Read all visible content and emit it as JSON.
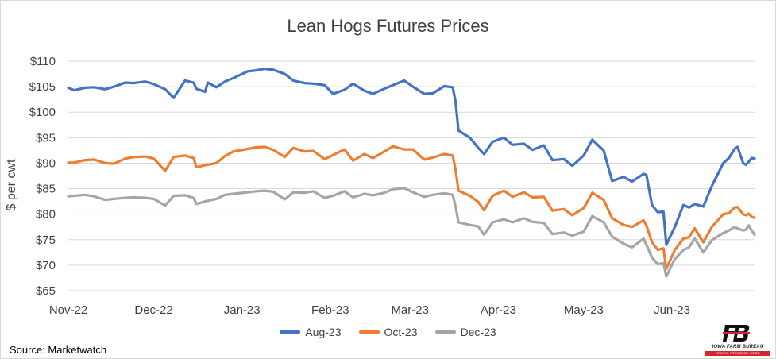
{
  "chart_data": {
    "type": "line",
    "title": "Lean Hogs Futures Prices",
    "ylabel": "$ per cwt",
    "xlabel": "",
    "ylim": [
      65,
      110
    ],
    "yticks": [
      65,
      70,
      75,
      80,
      85,
      90,
      95,
      100,
      105,
      110
    ],
    "ytick_labels": [
      "$65",
      "$70",
      "$75",
      "$80",
      "$85",
      "$90",
      "$95",
      "$100",
      "$105",
      "$110"
    ],
    "x_start": "2022-11-01",
    "x_end": "2023-06-30",
    "x_ticks": [
      {
        "label": "Nov-22",
        "date": "2022-11-01"
      },
      {
        "label": "Dec-22",
        "date": "2022-12-01"
      },
      {
        "label": "Jan-23",
        "date": "2023-01-01"
      },
      {
        "label": "Feb-23",
        "date": "2023-02-01"
      },
      {
        "label": "Mar-23",
        "date": "2023-03-01"
      },
      {
        "label": "Apr-23",
        "date": "2023-04-01"
      },
      {
        "label": "May-23",
        "date": "2023-05-01"
      },
      {
        "label": "Jun-23",
        "date": "2023-06-01"
      }
    ],
    "grid": true,
    "legend_position": "bottom",
    "series": [
      {
        "name": "Aug-23",
        "color": "#4472c4",
        "points": [
          [
            "2022-11-01",
            104.8
          ],
          [
            "2022-11-03",
            104.3
          ],
          [
            "2022-11-07",
            104.8
          ],
          [
            "2022-11-10",
            104.9
          ],
          [
            "2022-11-14",
            104.5
          ],
          [
            "2022-11-17",
            105.0
          ],
          [
            "2022-11-21",
            105.8
          ],
          [
            "2022-11-24",
            105.7
          ],
          [
            "2022-11-28",
            106.0
          ],
          [
            "2022-12-01",
            105.5
          ],
          [
            "2022-12-05",
            104.5
          ],
          [
            "2022-12-08",
            102.8
          ],
          [
            "2022-12-12",
            106.2
          ],
          [
            "2022-12-15",
            105.8
          ],
          [
            "2022-12-16",
            104.6
          ],
          [
            "2022-12-19",
            104.0
          ],
          [
            "2022-12-20",
            105.8
          ],
          [
            "2022-12-23",
            104.9
          ],
          [
            "2022-12-26",
            106.0
          ],
          [
            "2022-12-29",
            106.7
          ],
          [
            "2023-01-03",
            108.0
          ],
          [
            "2023-01-06",
            108.2
          ],
          [
            "2023-01-09",
            108.5
          ],
          [
            "2023-01-12",
            108.3
          ],
          [
            "2023-01-16",
            107.5
          ],
          [
            "2023-01-19",
            106.2
          ],
          [
            "2023-01-23",
            105.7
          ],
          [
            "2023-01-26",
            105.6
          ],
          [
            "2023-01-30",
            105.3
          ],
          [
            "2023-02-02",
            103.6
          ],
          [
            "2023-02-06",
            104.4
          ],
          [
            "2023-02-09",
            105.6
          ],
          [
            "2023-02-13",
            104.2
          ],
          [
            "2023-02-16",
            103.6
          ],
          [
            "2023-02-20",
            104.6
          ],
          [
            "2023-02-23",
            105.3
          ],
          [
            "2023-02-27",
            106.2
          ],
          [
            "2023-03-02",
            105.0
          ],
          [
            "2023-03-06",
            103.6
          ],
          [
            "2023-03-09",
            103.7
          ],
          [
            "2023-03-13",
            105.1
          ],
          [
            "2023-03-16",
            104.9
          ],
          [
            "2023-03-17",
            102.0
          ],
          [
            "2023-03-18",
            96.4
          ],
          [
            "2023-03-22",
            95.0
          ],
          [
            "2023-03-25",
            93.0
          ],
          [
            "2023-03-27",
            91.8
          ],
          [
            "2023-03-30",
            94.2
          ],
          [
            "2023-04-03",
            95.0
          ],
          [
            "2023-04-06",
            93.6
          ],
          [
            "2023-04-10",
            93.8
          ],
          [
            "2023-04-13",
            92.6
          ],
          [
            "2023-04-17",
            93.5
          ],
          [
            "2023-04-20",
            90.6
          ],
          [
            "2023-04-24",
            90.8
          ],
          [
            "2023-04-27",
            89.5
          ],
          [
            "2023-05-01",
            91.5
          ],
          [
            "2023-05-04",
            94.6
          ],
          [
            "2023-05-08",
            92.5
          ],
          [
            "2023-05-11",
            86.5
          ],
          [
            "2023-05-15",
            87.3
          ],
          [
            "2023-05-18",
            86.4
          ],
          [
            "2023-05-22",
            87.9
          ],
          [
            "2023-05-23",
            87.7
          ],
          [
            "2023-05-25",
            81.8
          ],
          [
            "2023-05-27",
            80.4
          ],
          [
            "2023-05-29",
            80.5
          ],
          [
            "2023-05-30",
            74.0
          ],
          [
            "2023-06-02",
            77.5
          ],
          [
            "2023-06-05",
            81.8
          ],
          [
            "2023-06-07",
            81.3
          ],
          [
            "2023-06-09",
            82.0
          ],
          [
            "2023-06-12",
            81.5
          ],
          [
            "2023-06-15",
            85.5
          ],
          [
            "2023-06-19",
            90.0
          ],
          [
            "2023-06-21",
            91.0
          ],
          [
            "2023-06-23",
            92.8
          ],
          [
            "2023-06-24",
            93.2
          ],
          [
            "2023-06-26",
            90.0
          ],
          [
            "2023-06-27",
            89.7
          ],
          [
            "2023-06-28",
            90.3
          ],
          [
            "2023-06-29",
            91.0
          ],
          [
            "2023-06-30",
            90.9
          ]
        ]
      },
      {
        "name": "Oct-23",
        "color": "#ed7d31",
        "points": [
          [
            "2022-11-01",
            90.1
          ],
          [
            "2022-11-03",
            90.1
          ],
          [
            "2022-11-07",
            90.6
          ],
          [
            "2022-11-10",
            90.7
          ],
          [
            "2022-11-14",
            90.0
          ],
          [
            "2022-11-17",
            89.9
          ],
          [
            "2022-11-21",
            90.9
          ],
          [
            "2022-11-24",
            91.2
          ],
          [
            "2022-11-28",
            91.3
          ],
          [
            "2022-12-01",
            90.9
          ],
          [
            "2022-12-05",
            88.5
          ],
          [
            "2022-12-08",
            91.2
          ],
          [
            "2022-12-12",
            91.5
          ],
          [
            "2022-12-15",
            91.0
          ],
          [
            "2022-12-16",
            89.2
          ],
          [
            "2022-12-19",
            89.6
          ],
          [
            "2022-12-23",
            90.0
          ],
          [
            "2022-12-26",
            91.4
          ],
          [
            "2022-12-29",
            92.3
          ],
          [
            "2023-01-03",
            92.8
          ],
          [
            "2023-01-06",
            93.1
          ],
          [
            "2023-01-09",
            93.2
          ],
          [
            "2023-01-12",
            92.6
          ],
          [
            "2023-01-16",
            91.2
          ],
          [
            "2023-01-19",
            93.0
          ],
          [
            "2023-01-23",
            92.3
          ],
          [
            "2023-01-26",
            92.4
          ],
          [
            "2023-01-30",
            90.8
          ],
          [
            "2023-02-02",
            91.6
          ],
          [
            "2023-02-06",
            92.7
          ],
          [
            "2023-02-09",
            90.5
          ],
          [
            "2023-02-13",
            91.8
          ],
          [
            "2023-02-16",
            91.0
          ],
          [
            "2023-02-20",
            92.3
          ],
          [
            "2023-02-23",
            93.3
          ],
          [
            "2023-02-27",
            92.7
          ],
          [
            "2023-03-02",
            92.7
          ],
          [
            "2023-03-06",
            90.7
          ],
          [
            "2023-03-09",
            91.1
          ],
          [
            "2023-03-13",
            91.8
          ],
          [
            "2023-03-16",
            91.5
          ],
          [
            "2023-03-17",
            88.7
          ],
          [
            "2023-03-18",
            84.6
          ],
          [
            "2023-03-22",
            83.6
          ],
          [
            "2023-03-25",
            82.4
          ],
          [
            "2023-03-27",
            80.8
          ],
          [
            "2023-03-30",
            83.6
          ],
          [
            "2023-04-03",
            84.6
          ],
          [
            "2023-04-06",
            83.4
          ],
          [
            "2023-04-10",
            84.3
          ],
          [
            "2023-04-13",
            83.3
          ],
          [
            "2023-04-17",
            83.4
          ],
          [
            "2023-04-20",
            80.7
          ],
          [
            "2023-04-24",
            81.0
          ],
          [
            "2023-04-27",
            79.8
          ],
          [
            "2023-05-01",
            81.2
          ],
          [
            "2023-05-04",
            84.2
          ],
          [
            "2023-05-08",
            82.8
          ],
          [
            "2023-05-11",
            79.2
          ],
          [
            "2023-05-15",
            77.9
          ],
          [
            "2023-05-18",
            77.5
          ],
          [
            "2023-05-22",
            78.8
          ],
          [
            "2023-05-23",
            77.8
          ],
          [
            "2023-05-25",
            74.5
          ],
          [
            "2023-05-27",
            73.0
          ],
          [
            "2023-05-29",
            73.3
          ],
          [
            "2023-05-30",
            69.3
          ],
          [
            "2023-06-02",
            73.0
          ],
          [
            "2023-06-05",
            75.2
          ],
          [
            "2023-06-07",
            75.5
          ],
          [
            "2023-06-09",
            77.2
          ],
          [
            "2023-06-12",
            74.5
          ],
          [
            "2023-06-15",
            77.5
          ],
          [
            "2023-06-19",
            80.0
          ],
          [
            "2023-06-21",
            80.2
          ],
          [
            "2023-06-23",
            81.3
          ],
          [
            "2023-06-24",
            81.4
          ],
          [
            "2023-06-26",
            80.0
          ],
          [
            "2023-06-27",
            79.8
          ],
          [
            "2023-06-28",
            80.1
          ],
          [
            "2023-06-29",
            79.5
          ],
          [
            "2023-06-30",
            79.3
          ]
        ]
      },
      {
        "name": "Dec-23",
        "color": "#a5a5a5",
        "points": [
          [
            "2022-11-01",
            83.5
          ],
          [
            "2022-11-03",
            83.6
          ],
          [
            "2022-11-07",
            83.8
          ],
          [
            "2022-11-10",
            83.5
          ],
          [
            "2022-11-14",
            82.8
          ],
          [
            "2022-11-17",
            83.0
          ],
          [
            "2022-11-21",
            83.2
          ],
          [
            "2022-11-24",
            83.3
          ],
          [
            "2022-11-28",
            83.2
          ],
          [
            "2022-12-01",
            83.0
          ],
          [
            "2022-12-05",
            81.7
          ],
          [
            "2022-12-08",
            83.6
          ],
          [
            "2022-12-12",
            83.7
          ],
          [
            "2022-12-15",
            83.2
          ],
          [
            "2022-12-16",
            82.0
          ],
          [
            "2022-12-19",
            82.5
          ],
          [
            "2022-12-23",
            83.0
          ],
          [
            "2022-12-26",
            83.8
          ],
          [
            "2022-12-29",
            84.0
          ],
          [
            "2023-01-03",
            84.3
          ],
          [
            "2023-01-06",
            84.5
          ],
          [
            "2023-01-09",
            84.6
          ],
          [
            "2023-01-12",
            84.4
          ],
          [
            "2023-01-16",
            82.9
          ],
          [
            "2023-01-19",
            84.3
          ],
          [
            "2023-01-23",
            84.2
          ],
          [
            "2023-01-26",
            84.5
          ],
          [
            "2023-01-30",
            83.2
          ],
          [
            "2023-02-02",
            83.6
          ],
          [
            "2023-02-06",
            84.5
          ],
          [
            "2023-02-09",
            83.3
          ],
          [
            "2023-02-13",
            84.0
          ],
          [
            "2023-02-16",
            83.7
          ],
          [
            "2023-02-20",
            84.2
          ],
          [
            "2023-02-23",
            84.9
          ],
          [
            "2023-02-27",
            85.1
          ],
          [
            "2023-03-02",
            84.3
          ],
          [
            "2023-03-06",
            83.4
          ],
          [
            "2023-03-09",
            83.8
          ],
          [
            "2023-03-13",
            84.1
          ],
          [
            "2023-03-16",
            83.8
          ],
          [
            "2023-03-17",
            81.5
          ],
          [
            "2023-03-18",
            78.4
          ],
          [
            "2023-03-22",
            77.9
          ],
          [
            "2023-03-25",
            77.6
          ],
          [
            "2023-03-27",
            76.0
          ],
          [
            "2023-03-30",
            78.4
          ],
          [
            "2023-04-03",
            79.0
          ],
          [
            "2023-04-06",
            78.4
          ],
          [
            "2023-04-10",
            79.2
          ],
          [
            "2023-04-13",
            78.5
          ],
          [
            "2023-04-17",
            78.3
          ],
          [
            "2023-04-20",
            76.1
          ],
          [
            "2023-04-24",
            76.4
          ],
          [
            "2023-04-27",
            75.8
          ],
          [
            "2023-05-01",
            76.6
          ],
          [
            "2023-05-04",
            79.6
          ],
          [
            "2023-05-08",
            78.4
          ],
          [
            "2023-05-11",
            75.6
          ],
          [
            "2023-05-15",
            74.2
          ],
          [
            "2023-05-18",
            73.5
          ],
          [
            "2023-05-22",
            75.2
          ],
          [
            "2023-05-23",
            74.0
          ],
          [
            "2023-05-25",
            71.5
          ],
          [
            "2023-05-27",
            70.2
          ],
          [
            "2023-05-29",
            70.4
          ],
          [
            "2023-05-30",
            67.8
          ],
          [
            "2023-06-02",
            71.2
          ],
          [
            "2023-06-05",
            73.0
          ],
          [
            "2023-06-07",
            73.5
          ],
          [
            "2023-06-09",
            75.2
          ],
          [
            "2023-06-12",
            72.5
          ],
          [
            "2023-06-15",
            74.9
          ],
          [
            "2023-06-19",
            76.3
          ],
          [
            "2023-06-21",
            76.8
          ],
          [
            "2023-06-23",
            77.5
          ],
          [
            "2023-06-24",
            77.2
          ],
          [
            "2023-06-26",
            76.8
          ],
          [
            "2023-06-27",
            77.0
          ],
          [
            "2023-06-28",
            77.8
          ],
          [
            "2023-06-29",
            76.8
          ],
          [
            "2023-06-30",
            76.0
          ]
        ]
      }
    ]
  },
  "source": "Source: Marketwatch",
  "logo": {
    "mark": "FB",
    "name": "IOWA FARM BUREAU",
    "tagline": "PEOPLE. PROGRESS. PRIDE."
  }
}
